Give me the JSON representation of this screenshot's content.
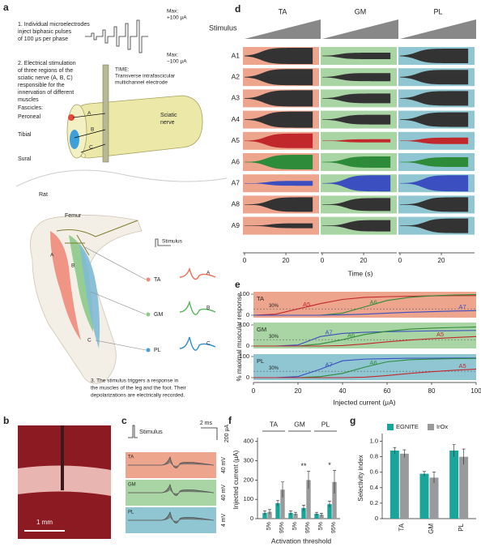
{
  "panel_labels": [
    "a",
    "b",
    "c",
    "d",
    "e",
    "f",
    "g"
  ],
  "panel_a": {
    "step1": [
      "1. Individual microelectrodes",
      "inject biphasic pulses",
      "of 100 μs per phase"
    ],
    "max_label": [
      "Max:",
      "+100 μA"
    ],
    "min_label": [
      "Max:",
      "−100 μA"
    ],
    "step2": [
      "2. Electrical stimulation",
      "of three regions of the",
      "sciatic nerve (A, B, C)",
      "responsible for the",
      "innervation of different",
      "muscles"
    ],
    "time": [
      "TIME:",
      "Transverse intrafascicular",
      "multichannel electrode"
    ],
    "fascicles": "Fascicles:",
    "peroneal": "Peroneal",
    "tibial": "Tibial",
    "sural": "Sural",
    "sciatic": [
      "Sciatic",
      "nerve"
    ],
    "rat": "Rat",
    "femur": "Femur",
    "stimulus": "Stimulus",
    "muscles": [
      "TA",
      "GM",
      "PL"
    ],
    "regions": [
      "A",
      "B",
      "C"
    ],
    "step3": [
      "3. The stimulus triggers a response in",
      "the muscles of the leg and the foot. Their",
      "depolarizations are electrically recorded."
    ]
  },
  "panel_b": {
    "scale": "1 mm"
  },
  "panel_c": {
    "stimulus": "Stimulus",
    "time_scale": "2 ms",
    "current_scale": "200 μA",
    "muscles": [
      "TA",
      "GM",
      "PL"
    ],
    "voltage_scales": [
      "40 mV",
      "40 mV",
      "4 mV"
    ]
  },
  "panel_d": {
    "stimulus": "Stimulus",
    "muscles": [
      "TA",
      "GM",
      "PL"
    ],
    "colors": [
      "#eea58e",
      "#a9d4a3",
      "#8fc6d2"
    ],
    "channels": [
      "A1",
      "A2",
      "A3",
      "A4",
      "A5",
      "A6",
      "A7",
      "A8",
      "A9"
    ],
    "xticks": [
      0,
      20
    ],
    "xlabel": "Time (s)"
  },
  "chart_data": [
    {
      "type": "line",
      "xlabel": "Injected current (μA)",
      "ylabel": "% maximal muscular response",
      "x": [
        0,
        10,
        20,
        30,
        40,
        50,
        60,
        70,
        80,
        90,
        100
      ],
      "xlim": [
        0,
        100
      ],
      "xticks": [
        0,
        20,
        40,
        60,
        80,
        100
      ],
      "ylim": [
        0,
        100
      ],
      "yticks": [
        0,
        100
      ],
      "threshold": 30,
      "threshold_label": "30%",
      "panels": [
        {
          "name": "TA",
          "color": "#eea58e",
          "series": [
            {
              "name": "A5",
              "color": "#c0282d",
              "values": [
                0,
                5,
                30,
                55,
                75,
                85,
                88,
                90,
                92,
                93,
                93
              ]
            },
            {
              "name": "A6",
              "color": "#2e8b3a",
              "values": [
                0,
                0,
                0,
                0,
                10,
                40,
                70,
                85,
                92,
                96,
                98
              ]
            },
            {
              "name": "A7",
              "color": "#3b4fc0",
              "values": [
                0,
                0,
                0,
                0,
                2,
                5,
                10,
                14,
                17,
                20,
                22
              ]
            }
          ]
        },
        {
          "name": "GM",
          "color": "#a9d4a3",
          "series": [
            {
              "name": "A7",
              "color": "#3b4fc0",
              "values": [
                0,
                0,
                5,
                45,
                60,
                65,
                68,
                70,
                72,
                73,
                74
              ]
            },
            {
              "name": "A6",
              "color": "#2e8b3a",
              "values": [
                0,
                0,
                0,
                10,
                30,
                55,
                70,
                80,
                85,
                88,
                90
              ]
            },
            {
              "name": "A5",
              "color": "#c0282d",
              "values": [
                0,
                0,
                0,
                0,
                2,
                10,
                20,
                28,
                35,
                40,
                45
              ]
            }
          ]
        },
        {
          "name": "PL",
          "color": "#8fc6d2",
          "series": [
            {
              "name": "A7",
              "color": "#3b4fc0",
              "values": [
                0,
                0,
                5,
                40,
                80,
                88,
                90,
                92,
                92,
                93,
                93
              ]
            },
            {
              "name": "A6",
              "color": "#2e8b3a",
              "values": [
                0,
                0,
                0,
                5,
                20,
                50,
                75,
                85,
                88,
                90,
                91
              ]
            },
            {
              "name": "A5",
              "color": "#c0282d",
              "values": [
                0,
                0,
                0,
                0,
                0,
                2,
                10,
                20,
                28,
                35,
                40
              ]
            }
          ]
        }
      ]
    },
    {
      "type": "bar",
      "ylabel": "Injected current (μA)",
      "xlabel": "Activation threshold",
      "groups": [
        "TA",
        "GM",
        "PL"
      ],
      "categories": [
        "5%",
        "95%",
        "5%",
        "95%",
        "5%",
        "95%"
      ],
      "ylim": [
        0,
        420
      ],
      "yticks": [
        0,
        100,
        200,
        300,
        400
      ],
      "significance": [
        null,
        null,
        null,
        "**",
        null,
        "*"
      ],
      "series": [
        {
          "name": "EGNITE",
          "color": "#1aa59a",
          "values": [
            30,
            80,
            30,
            55,
            25,
            75
          ],
          "errors": [
            10,
            15,
            10,
            15,
            8,
            15
          ]
        },
        {
          "name": "IrOx",
          "color": "#9a9a9c",
          "values": [
            35,
            150,
            25,
            200,
            20,
            190
          ],
          "errors": [
            12,
            40,
            8,
            45,
            8,
            60
          ]
        }
      ]
    },
    {
      "type": "bar",
      "ylabel": "Selectivity index",
      "categories": [
        "TA",
        "GM",
        "PL"
      ],
      "ylim": [
        0,
        1.1
      ],
      "yticks": [
        0,
        0.2,
        0.4,
        0.6,
        0.8,
        {
          "value": 1.0,
          "label": "1.0"
        }
      ],
      "legend": "top",
      "series": [
        {
          "name": "EGNITE",
          "color": "#1aa59a",
          "values": [
            0.88,
            0.58,
            0.88
          ],
          "errors": [
            0.04,
            0.03,
            0.08
          ]
        },
        {
          "name": "IrOx",
          "color": "#9a9a9c",
          "values": [
            0.84,
            0.53,
            0.8
          ],
          "errors": [
            0.05,
            0.07,
            0.1
          ]
        }
      ]
    }
  ]
}
